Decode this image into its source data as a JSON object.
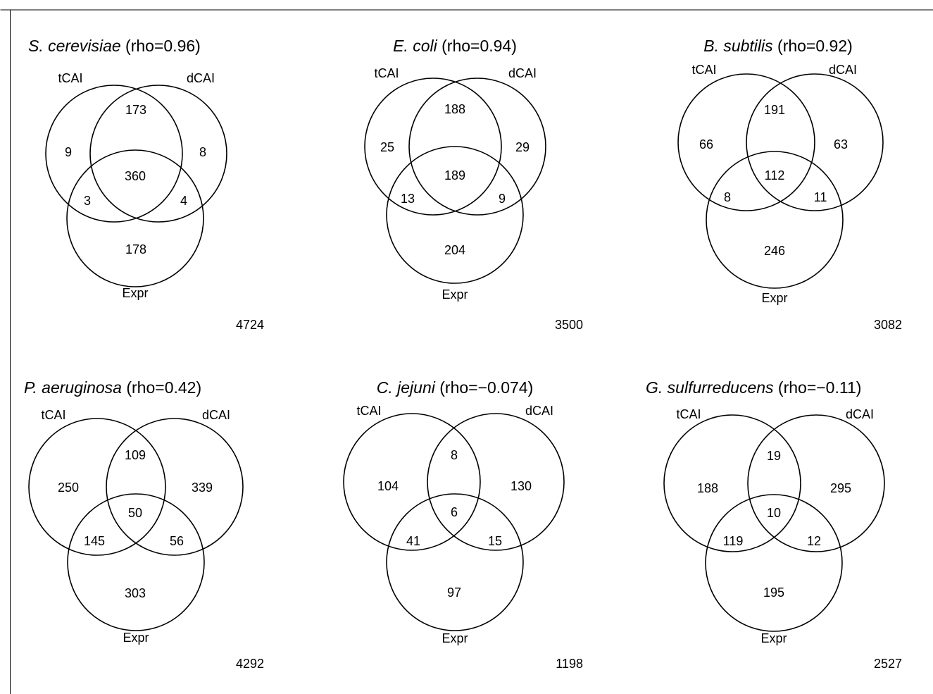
{
  "panels": [
    {
      "species": "S. cerevisiae",
      "rho_text": " (rho=0.96)",
      "set_labels": {
        "a": "tCAI",
        "b": "dCAI",
        "c": "Expr"
      },
      "counts": {
        "a_only": "9",
        "ab_only": "173",
        "b_only": "8",
        "abc": "360",
        "ac_only": "3",
        "bc_only": "4",
        "c_only": "178"
      },
      "total": "4724"
    },
    {
      "species": "E. coli",
      "rho_text": " (rho=0.94)",
      "set_labels": {
        "a": "tCAI",
        "b": "dCAI",
        "c": "Expr"
      },
      "counts": {
        "a_only": "25",
        "ab_only": "188",
        "b_only": "29",
        "abc": "189",
        "ac_only": "13",
        "bc_only": "9",
        "c_only": "204"
      },
      "total": "3500"
    },
    {
      "species": "B. subtilis",
      "rho_text": " (rho=0.92)",
      "set_labels": {
        "a": "tCAI",
        "b": "dCAI",
        "c": "Expr"
      },
      "counts": {
        "a_only": "66",
        "ab_only": "191",
        "b_only": "63",
        "abc": "112",
        "ac_only": "8",
        "bc_only": "11",
        "c_only": "246"
      },
      "total": "3082"
    },
    {
      "species": "P. aeruginosa",
      "rho_text": " (rho=0.42)",
      "set_labels": {
        "a": "tCAI",
        "b": "dCAI",
        "c": "Expr"
      },
      "counts": {
        "a_only": "250",
        "ab_only": "109",
        "b_only": "339",
        "abc": "50",
        "ac_only": "145",
        "bc_only": "56",
        "c_only": "303"
      },
      "total": "4292"
    },
    {
      "species": "C. jejuni",
      "rho_text": " (rho=−0.074)",
      "set_labels": {
        "a": "tCAI",
        "b": "dCAI",
        "c": "Expr"
      },
      "counts": {
        "a_only": "104",
        "ab_only": "8",
        "b_only": "130",
        "abc": "6",
        "ac_only": "41",
        "bc_only": "15",
        "c_only": "97"
      },
      "total": "1198"
    },
    {
      "species": "G. sulfurreducens",
      "rho_text": " (rho=−0.11)",
      "set_labels": {
        "a": "tCAI",
        "b": "dCAI",
        "c": "Expr"
      },
      "counts": {
        "a_only": "188",
        "ab_only": "19",
        "b_only": "295",
        "abc": "10",
        "ac_only": "119",
        "bc_only": "12",
        "c_only": "195"
      },
      "total": "2527"
    }
  ]
}
